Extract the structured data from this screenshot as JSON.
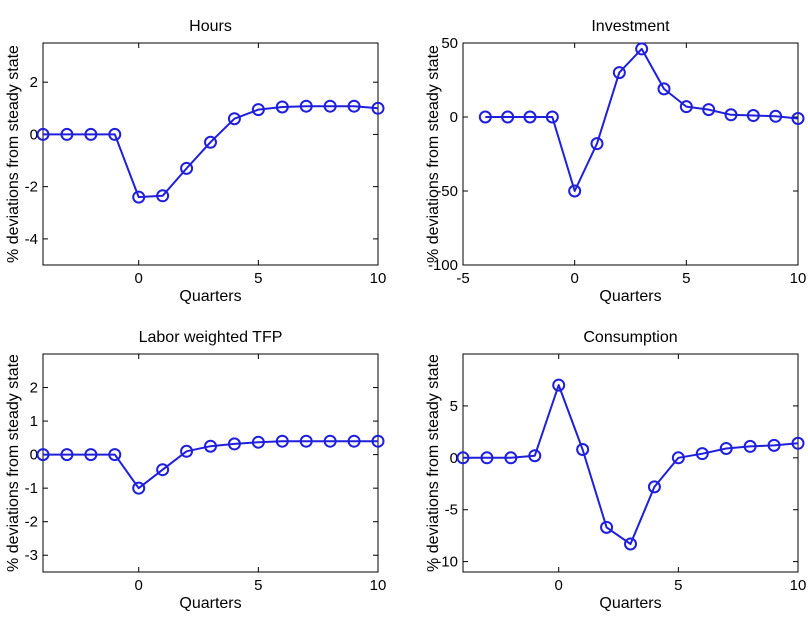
{
  "series_color": "#1f1fdc",
  "chart_data": [
    {
      "type": "line",
      "title": "Hours",
      "xlabel": "Quarters",
      "ylabel": "% deviations from steady state",
      "xlim": [
        -4,
        10
      ],
      "ylim": [
        -5,
        3.5
      ],
      "xticks": [
        0,
        5,
        10
      ],
      "yticks": [
        -4,
        -2,
        0,
        2
      ],
      "x": [
        -4,
        -3,
        -2,
        -1,
        0,
        1,
        2,
        3,
        4,
        5,
        6,
        7,
        8,
        9,
        10
      ],
      "y": [
        0,
        0,
        0,
        0,
        -2.4,
        -2.35,
        -1.3,
        -0.3,
        0.6,
        0.95,
        1.05,
        1.08,
        1.08,
        1.08,
        1.0
      ]
    },
    {
      "type": "line",
      "title": "Investment",
      "xlabel": "Quarters",
      "ylabel": "% deviations from steady state",
      "xlim": [
        -5,
        10
      ],
      "ylim": [
        -100,
        50
      ],
      "xticks": [
        -5,
        0,
        5,
        10
      ],
      "yticks": [
        -100,
        -50,
        0,
        50
      ],
      "x": [
        -4,
        -3,
        -2,
        -1,
        0,
        1,
        2,
        3,
        4,
        5,
        6,
        7,
        8,
        9,
        10
      ],
      "y": [
        0,
        0,
        0,
        0,
        -50,
        -18,
        30,
        46,
        19,
        7,
        5,
        1.5,
        1,
        0.5,
        -1
      ]
    },
    {
      "type": "line",
      "title": "Labor weighted TFP",
      "xlabel": "Quarters",
      "ylabel": "% deviations from steady state",
      "xlim": [
        -4,
        10
      ],
      "ylim": [
        -3.5,
        3
      ],
      "xticks": [
        0,
        5,
        10
      ],
      "yticks": [
        -3,
        -2,
        -1,
        0,
        1,
        2
      ],
      "x": [
        -4,
        -3,
        -2,
        -1,
        0,
        1,
        2,
        3,
        4,
        5,
        6,
        7,
        8,
        9,
        10
      ],
      "y": [
        0,
        0,
        0,
        0,
        -1.0,
        -0.45,
        0.1,
        0.25,
        0.32,
        0.37,
        0.4,
        0.4,
        0.4,
        0.4,
        0.4
      ]
    },
    {
      "type": "line",
      "title": "Consumption",
      "xlabel": "Quarters",
      "ylabel": "% deviations from steady state",
      "xlim": [
        -4,
        10
      ],
      "ylim": [
        -11,
        10
      ],
      "xticks": [
        0,
        5,
        10
      ],
      "yticks": [
        -10,
        -5,
        0,
        5
      ],
      "x": [
        -4,
        -3,
        -2,
        -1,
        0,
        1,
        2,
        3,
        4,
        5,
        6,
        7,
        8,
        9,
        10
      ],
      "y": [
        0,
        0,
        0,
        0.2,
        7,
        0.8,
        -6.7,
        -8.3,
        -2.8,
        0,
        0.4,
        0.9,
        1.1,
        1.2,
        1.4
      ]
    }
  ]
}
